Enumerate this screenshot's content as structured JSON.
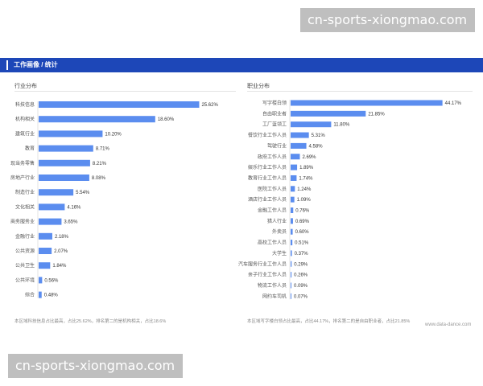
{
  "watermarks": {
    "top": "cn-sports-xiongmao.com",
    "bottom": "cn-sports-xiongmao.com"
  },
  "header": {
    "title": "工作画像 / 统计"
  },
  "colors": {
    "header": "#1d47b8",
    "bar": "#5b8def"
  },
  "credit": "www.data-dance.com",
  "chart_data": [
    {
      "type": "bar",
      "orientation": "horizontal",
      "title": "行业分布",
      "categories": [
        "科技信息",
        "机构相关",
        "建筑行业",
        "教育",
        "现当务零售",
        "房地产行业",
        "制造行业",
        "文化相关",
        "商务服务业",
        "金融行业",
        "公共资源",
        "公共卫生",
        "公共环境",
        "综合"
      ],
      "values": [
        25.62,
        18.6,
        10.2,
        8.71,
        8.21,
        8.08,
        5.54,
        4.16,
        3.65,
        2.18,
        2.07,
        1.84,
        0.56,
        0.48
      ],
      "value_labels": [
        "25.62%",
        "18.60%",
        "10.20%",
        "8.71%",
        "8.21%",
        "8.08%",
        "5.54%",
        "4.16%",
        "3.65%",
        "2.18%",
        "2.07%",
        "1.84%",
        "0.56%",
        "0.48%"
      ],
      "xlim": [
        0,
        28
      ],
      "footnote": "本区域科技信息占比最高，占比25.62%，排名第二的是机构相关，占比18.6%"
    },
    {
      "type": "bar",
      "orientation": "horizontal",
      "title": "职业分布",
      "categories": [
        "写字楼白领",
        "自由职业者",
        "工厂蓝领工",
        "餐饮行业工作人员",
        "驾驶行业",
        "政府工作人员",
        "娱乐行业工作人员",
        "教育行业工作人员",
        "医院工作人员",
        "酒店行业工作人员",
        "金融工作人员",
        "猎人行业",
        "外卖员",
        "高校工作人员",
        "大学生",
        "汽车服务行业工作人员",
        "亲子行业工作人员",
        "物流工作人员",
        "网约车司机"
      ],
      "values": [
        44.17,
        21.85,
        11.8,
        5.31,
        4.58,
        2.69,
        1.89,
        1.74,
        1.24,
        1.09,
        0.76,
        0.69,
        0.6,
        0.51,
        0.37,
        0.29,
        0.26,
        0.09,
        0.07
      ],
      "value_labels": [
        "44.17%",
        "21.85%",
        "11.80%",
        "5.31%",
        "4.58%",
        "2.69%",
        "1.89%",
        "1.74%",
        "1.24%",
        "1.09%",
        "0.76%",
        "0.69%",
        "0.60%",
        "0.51%",
        "0.37%",
        "0.29%",
        "0.26%",
        "0.09%",
        "0.07%"
      ],
      "xlim": [
        0,
        48
      ],
      "footnote": "本区域写字楼白领占比最高，占比44.17%，排名第二的是自由职业者，占比21.85%"
    }
  ]
}
